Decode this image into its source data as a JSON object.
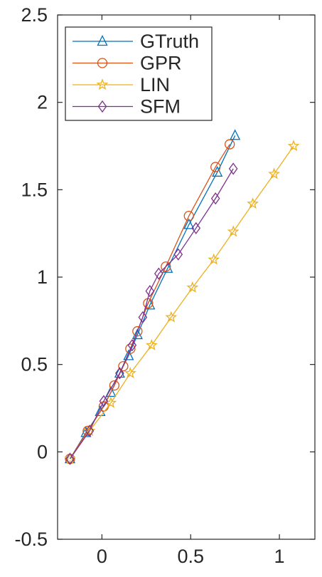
{
  "chart_data": {
    "type": "line",
    "xlim": [
      -0.25,
      1.2
    ],
    "ylim": [
      -0.5,
      2.5
    ],
    "x_ticks": [
      0,
      0.5,
      1
    ],
    "x_tick_labels": [
      "0",
      "0.5",
      "1"
    ],
    "y_ticks": [
      -0.5,
      0,
      0.5,
      1,
      1.5,
      2,
      2.5
    ],
    "y_tick_labels": [
      "-0.5",
      "0",
      "0.5",
      "1",
      "1.5",
      "2",
      "2.5"
    ],
    "grid": false,
    "legend_position": "top-left",
    "series": [
      {
        "name": "GTruth",
        "color": "#0072bd",
        "marker": "triangle",
        "x": [
          -0.18,
          -0.09,
          -0.01,
          0.05,
          0.1,
          0.15,
          0.2,
          0.27,
          0.37,
          0.49,
          0.65,
          0.75
        ],
        "y": [
          -0.04,
          0.11,
          0.23,
          0.34,
          0.45,
          0.55,
          0.67,
          0.84,
          1.05,
          1.3,
          1.6,
          1.81
        ]
      },
      {
        "name": "GPR",
        "color": "#d95319",
        "marker": "circle",
        "x": [
          -0.18,
          -0.08,
          0.01,
          0.07,
          0.12,
          0.16,
          0.2,
          0.26,
          0.36,
          0.49,
          0.64,
          0.72
        ],
        "y": [
          -0.04,
          0.12,
          0.26,
          0.38,
          0.49,
          0.59,
          0.69,
          0.85,
          1.06,
          1.35,
          1.63,
          1.76
        ]
      },
      {
        "name": "LIN",
        "color": "#edb120",
        "marker": "star",
        "x": [
          -0.18,
          -0.07,
          0.05,
          0.16,
          0.28,
          0.39,
          0.51,
          0.63,
          0.74,
          0.85,
          0.97,
          1.08
        ],
        "y": [
          -0.04,
          0.12,
          0.28,
          0.45,
          0.61,
          0.77,
          0.94,
          1.1,
          1.26,
          1.42,
          1.59,
          1.75
        ]
      },
      {
        "name": "SFM",
        "color": "#7e2f8e",
        "marker": "diamond",
        "x": [
          -0.18,
          -0.07,
          0.01,
          0.1,
          0.17,
          0.23,
          0.27,
          0.32,
          0.43,
          0.53,
          0.64,
          0.74
        ],
        "y": [
          -0.04,
          0.12,
          0.29,
          0.45,
          0.61,
          0.77,
          0.92,
          1.02,
          1.13,
          1.28,
          1.45,
          1.62
        ]
      }
    ]
  }
}
